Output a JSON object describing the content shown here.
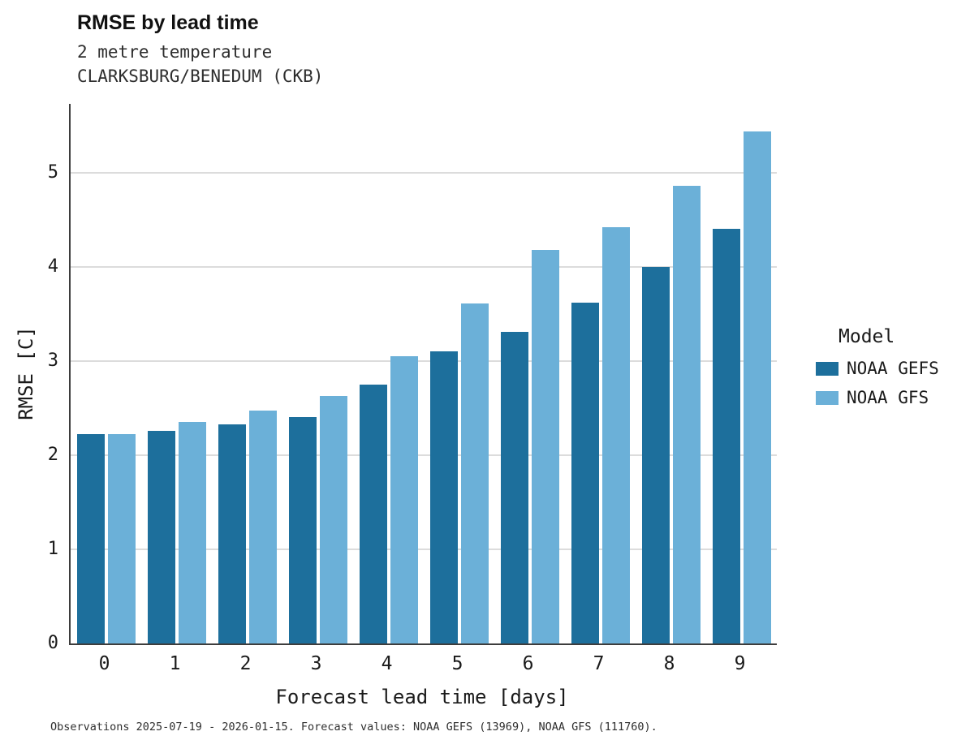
{
  "header": {
    "title": "RMSE by lead time",
    "subtitle_line1": "2 metre temperature",
    "subtitle_line2": "CLARKSBURG/BENEDUM (CKB)"
  },
  "legend": {
    "title": "Model",
    "entries": [
      {
        "label": "NOAA GEFS",
        "color": "#1d6f9c"
      },
      {
        "label": "NOAA GFS",
        "color": "#6bb0d8"
      }
    ]
  },
  "caption": "Observations 2025-07-19 - 2026-01-15. Forecast values: NOAA GEFS (13969), NOAA GFS (111760).",
  "chart_data": {
    "type": "bar",
    "title": "RMSE by lead time",
    "subtitle": [
      "2 metre temperature",
      "CLARKSBURG/BENEDUM (CKB)"
    ],
    "xlabel": "Forecast lead time [days]",
    "ylabel": "RMSE [C]",
    "categories": [
      "0",
      "1",
      "2",
      "3",
      "4",
      "5",
      "6",
      "7",
      "8",
      "9"
    ],
    "series": [
      {
        "name": "NOAA GEFS",
        "color": "#1d6f9c",
        "values": [
          2.22,
          2.26,
          2.33,
          2.4,
          2.75,
          3.1,
          3.31,
          3.62,
          4.0,
          4.4
        ]
      },
      {
        "name": "NOAA GFS",
        "color": "#6bb0d8",
        "values": [
          2.22,
          2.35,
          2.47,
          2.63,
          3.05,
          3.61,
          4.18,
          4.42,
          4.86,
          5.44
        ]
      }
    ],
    "ylim": [
      0,
      5.73
    ],
    "yticks": [
      0,
      1,
      2,
      3,
      4,
      5
    ],
    "grid": "horizontal",
    "legend_position": "right"
  }
}
